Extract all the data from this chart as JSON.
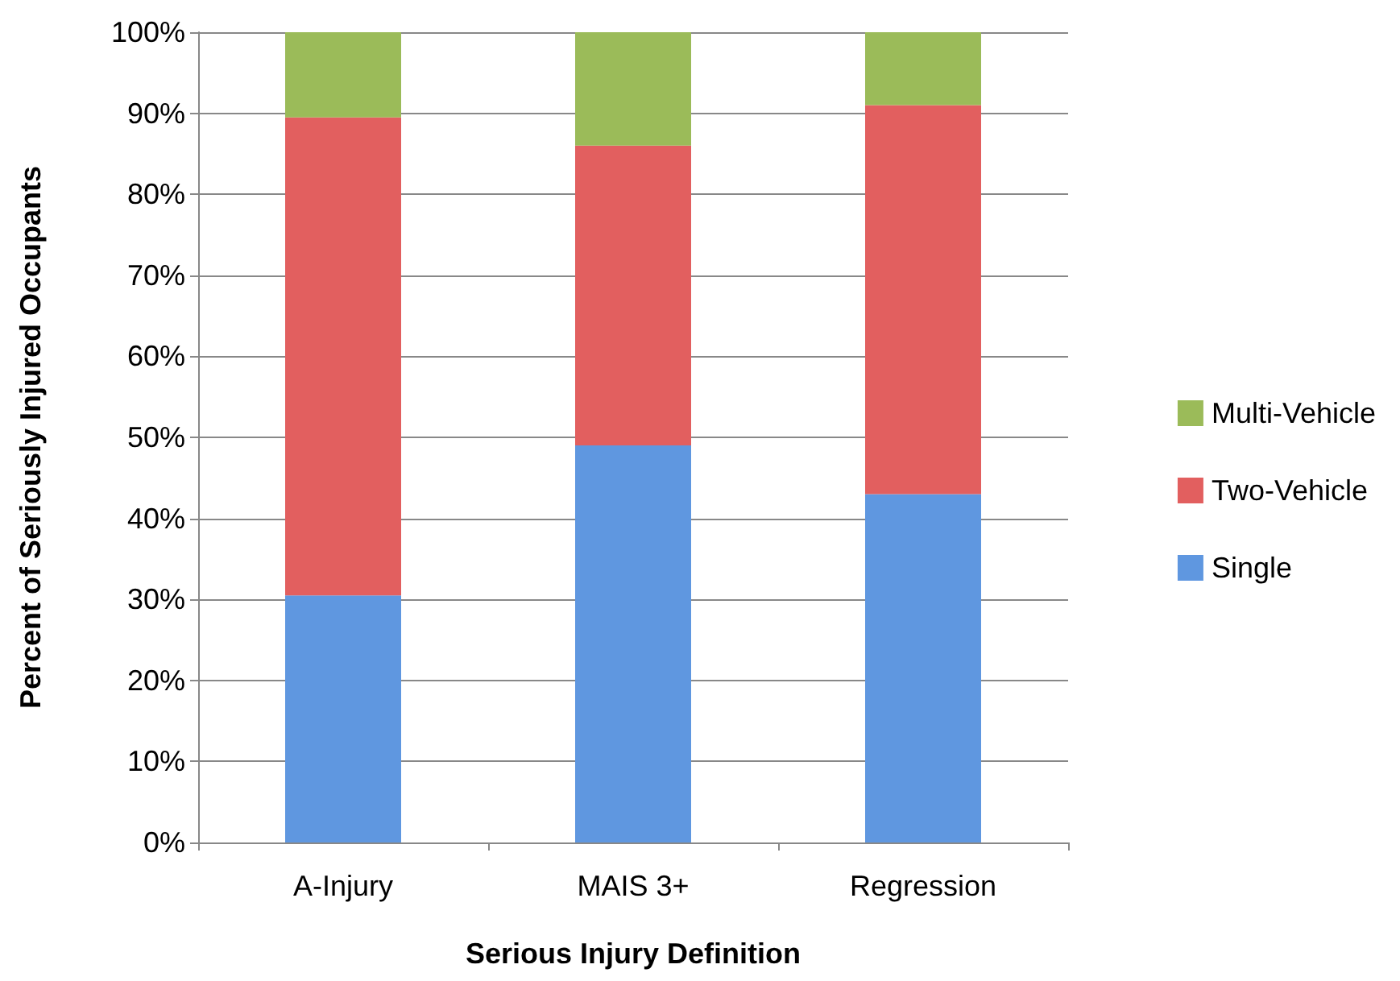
{
  "chart_data": {
    "type": "bar",
    "stacked": true,
    "xlabel": "Serious Injury Definition",
    "ylabel": "Percent of Seriously Injured Occupants",
    "categories": [
      "A-Injury",
      "MAIS 3+",
      "Regression"
    ],
    "series": [
      {
        "name": "Single",
        "color": "#5f97e0",
        "values": [
          30.5,
          49,
          43
        ]
      },
      {
        "name": "Two-Vehicle",
        "color": "#e25f5f",
        "values": [
          59,
          37,
          48
        ]
      },
      {
        "name": "Multi-Vehicle",
        "color": "#9bbb59",
        "values": [
          10.5,
          14,
          9
        ]
      }
    ],
    "ylim": [
      0,
      100
    ],
    "yticks": [
      {
        "value": 0,
        "label": "0%"
      },
      {
        "value": 10,
        "label": "10%"
      },
      {
        "value": 20,
        "label": "20%"
      },
      {
        "value": 30,
        "label": "30%"
      },
      {
        "value": 40,
        "label": "40%"
      },
      {
        "value": 50,
        "label": "50%"
      },
      {
        "value": 60,
        "label": "60%"
      },
      {
        "value": 70,
        "label": "70%"
      },
      {
        "value": 80,
        "label": "80%"
      },
      {
        "value": 90,
        "label": "90%"
      },
      {
        "value": 100,
        "label": "100%"
      }
    ],
    "grid": "y",
    "legend": "right"
  }
}
